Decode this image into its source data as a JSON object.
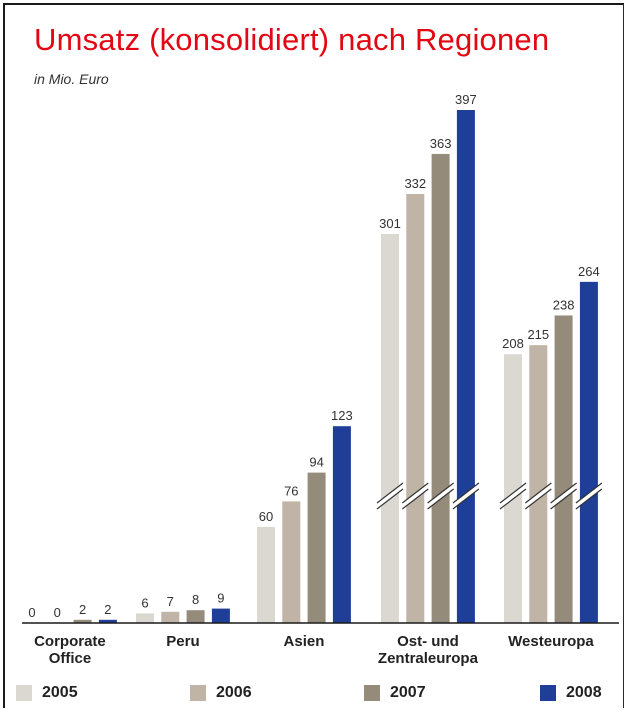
{
  "header": {
    "title": "Umsatz (konsolidiert) nach Regionen",
    "subtitle": "in Mio. Euro"
  },
  "colors": {
    "2005": "#dbd7d1",
    "2006": "#bfb4a6",
    "2007": "#958b7b",
    "2008": "#1f3e97",
    "title": "#e30613"
  },
  "chart_data": {
    "type": "bar",
    "title": "Umsatz (konsolidiert) nach Regionen",
    "subtitle": "in Mio. Euro",
    "categories": [
      [
        "Corporate",
        "Office"
      ],
      [
        "Peru"
      ],
      [
        "Asien"
      ],
      [
        "Ost- und",
        "Zentraleuropa"
      ],
      [
        "Westeuropa"
      ]
    ],
    "series": [
      {
        "name": "2005",
        "values": [
          0,
          6,
          60,
          301,
          208
        ]
      },
      {
        "name": "2006",
        "values": [
          0,
          7,
          76,
          332,
          215
        ]
      },
      {
        "name": "2007",
        "values": [
          2,
          8,
          94,
          363,
          238
        ]
      },
      {
        "name": "2008",
        "values": [
          2,
          9,
          123,
          397,
          264
        ]
      }
    ],
    "axis_break": {
      "categories": [
        3,
        4
      ]
    },
    "legend": "bottom"
  }
}
